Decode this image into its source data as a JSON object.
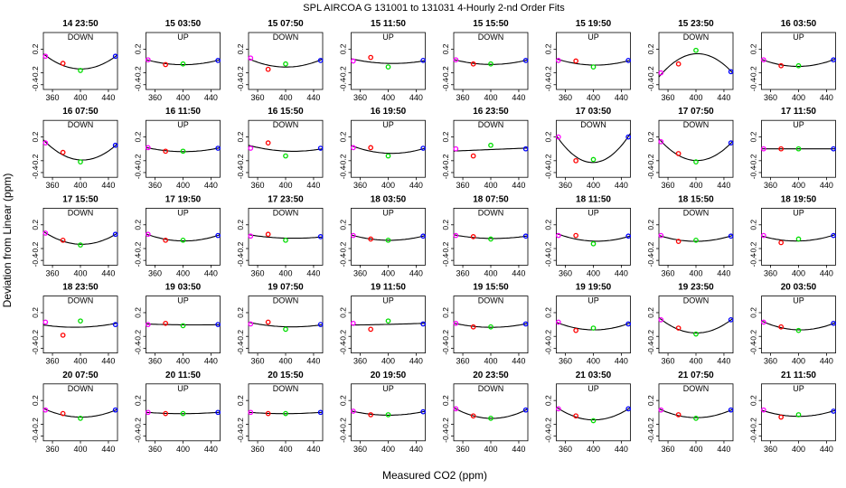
{
  "figure": {
    "title": "SPL   AIRCOA G   131001 to 131031   4-Hourly 2-nd Order Fits",
    "xlabel": "Measured CO2 (ppm)",
    "ylabel": "Deviation from Linear (ppm)"
  },
  "colors": {
    "curve": "#000000",
    "std1": "#ff00ff",
    "std2": "#ff0000",
    "std3": "#00dd00",
    "std4": "#0000ff"
  },
  "chart_data": {
    "type": "scatter",
    "x_std": [
      350,
      375,
      400,
      450
    ],
    "x_ticks": [
      360,
      400,
      440
    ],
    "y_ticks": [
      -0.4,
      -0.2,
      0.2
    ],
    "xlim": [
      347,
      453
    ],
    "ylim": [
      -0.48,
      0.48
    ],
    "panels": [
      {
        "time": "14 23:50",
        "dir": "DOWN",
        "points": [
          0.08,
          -0.04,
          -0.16,
          0.08
        ]
      },
      {
        "time": "15 03:50",
        "dir": "UP",
        "points": [
          0.02,
          -0.06,
          -0.05,
          0.01
        ]
      },
      {
        "time": "15 07:50",
        "dir": "DOWN",
        "points": [
          0.05,
          -0.14,
          -0.05,
          0.01
        ]
      },
      {
        "time": "15 11:50",
        "dir": "UP",
        "points": [
          0.0,
          0.06,
          -0.1,
          0.01
        ]
      },
      {
        "time": "15 15:50",
        "dir": "DOWN",
        "points": [
          0.02,
          -0.05,
          -0.05,
          0.01
        ]
      },
      {
        "time": "15 19:50",
        "dir": "UP",
        "points": [
          0.01,
          0.0,
          -0.1,
          0.01
        ]
      },
      {
        "time": "15 23:50",
        "dir": "DOWN",
        "points": [
          -0.2,
          -0.05,
          0.18,
          -0.18
        ]
      },
      {
        "time": "16 03:50",
        "dir": "UP",
        "points": [
          0.02,
          -0.08,
          -0.08,
          0.02
        ]
      },
      {
        "time": "16 07:50",
        "dir": "DOWN",
        "points": [
          0.1,
          -0.06,
          -0.22,
          0.06
        ]
      },
      {
        "time": "16 11:50",
        "dir": "UP",
        "points": [
          0.02,
          -0.04,
          -0.04,
          0.01
        ]
      },
      {
        "time": "16 15:50",
        "dir": "DOWN",
        "points": [
          0.01,
          0.1,
          -0.12,
          0.01
        ]
      },
      {
        "time": "16 19:50",
        "dir": "UP",
        "points": [
          0.02,
          0.02,
          -0.12,
          0.01
        ]
      },
      {
        "time": "16 23:50",
        "dir": "DOWN",
        "points": [
          0.0,
          -0.12,
          0.06,
          0.0
        ]
      },
      {
        "time": "17 03:50",
        "dir": "DOWN",
        "points": [
          0.2,
          -0.2,
          -0.18,
          0.2
        ]
      },
      {
        "time": "17 07:50",
        "dir": "DOWN",
        "points": [
          0.12,
          -0.08,
          -0.22,
          0.1
        ]
      },
      {
        "time": "17 11:50",
        "dir": "UP",
        "points": [
          0.0,
          0.0,
          0.0,
          0.0
        ]
      },
      {
        "time": "17 15:50",
        "dir": "DOWN",
        "points": [
          0.06,
          -0.06,
          -0.14,
          0.04
        ]
      },
      {
        "time": "17 19:50",
        "dir": "UP",
        "points": [
          0.04,
          -0.06,
          -0.06,
          0.02
        ]
      },
      {
        "time": "17 23:50",
        "dir": "DOWN",
        "points": [
          0.01,
          0.04,
          -0.06,
          0.0
        ]
      },
      {
        "time": "18 03:50",
        "dir": "UP",
        "points": [
          0.02,
          -0.04,
          -0.06,
          0.01
        ]
      },
      {
        "time": "18 07:50",
        "dir": "DOWN",
        "points": [
          0.02,
          0.0,
          -0.04,
          0.01
        ]
      },
      {
        "time": "18 11:50",
        "dir": "UP",
        "points": [
          0.02,
          0.02,
          -0.12,
          0.01
        ]
      },
      {
        "time": "18 15:50",
        "dir": "DOWN",
        "points": [
          0.02,
          -0.08,
          -0.06,
          0.01
        ]
      },
      {
        "time": "18 19:50",
        "dir": "UP",
        "points": [
          0.02,
          -0.1,
          -0.04,
          0.02
        ]
      },
      {
        "time": "18 23:50",
        "dir": "DOWN",
        "points": [
          0.04,
          -0.18,
          0.06,
          0.0
        ]
      },
      {
        "time": "19 03:50",
        "dir": "UP",
        "points": [
          0.0,
          0.02,
          -0.02,
          0.0
        ]
      },
      {
        "time": "19 07:50",
        "dir": "DOWN",
        "points": [
          0.01,
          0.04,
          -0.08,
          0.0
        ]
      },
      {
        "time": "19 11:50",
        "dir": "UP",
        "points": [
          0.02,
          -0.08,
          0.06,
          0.01
        ]
      },
      {
        "time": "19 15:50",
        "dir": "DOWN",
        "points": [
          0.02,
          -0.04,
          -0.04,
          0.01
        ]
      },
      {
        "time": "19 19:50",
        "dir": "UP",
        "points": [
          0.04,
          -0.1,
          -0.06,
          0.01
        ]
      },
      {
        "time": "19 23:50",
        "dir": "DOWN",
        "points": [
          0.08,
          -0.06,
          -0.16,
          0.08
        ]
      },
      {
        "time": "20 03:50",
        "dir": "UP",
        "points": [
          0.04,
          -0.04,
          -0.1,
          0.02
        ]
      },
      {
        "time": "20 07:50",
        "dir": "DOWN",
        "points": [
          0.04,
          -0.02,
          -0.1,
          0.04
        ]
      },
      {
        "time": "20 11:50",
        "dir": "UP",
        "points": [
          0.0,
          -0.02,
          -0.02,
          0.0
        ]
      },
      {
        "time": "20 15:50",
        "dir": "DOWN",
        "points": [
          0.0,
          -0.02,
          -0.02,
          0.0
        ]
      },
      {
        "time": "20 19:50",
        "dir": "UP",
        "points": [
          0.02,
          -0.04,
          -0.04,
          0.01
        ]
      },
      {
        "time": "20 23:50",
        "dir": "DOWN",
        "points": [
          0.06,
          -0.06,
          -0.1,
          0.04
        ]
      },
      {
        "time": "21 03:50",
        "dir": "UP",
        "points": [
          0.06,
          -0.06,
          -0.14,
          0.06
        ]
      },
      {
        "time": "21 07:50",
        "dir": "DOWN",
        "points": [
          0.04,
          -0.04,
          -0.1,
          0.04
        ]
      },
      {
        "time": "21 11:50",
        "dir": "UP",
        "points": [
          0.04,
          -0.08,
          -0.04,
          0.02
        ]
      }
    ]
  }
}
